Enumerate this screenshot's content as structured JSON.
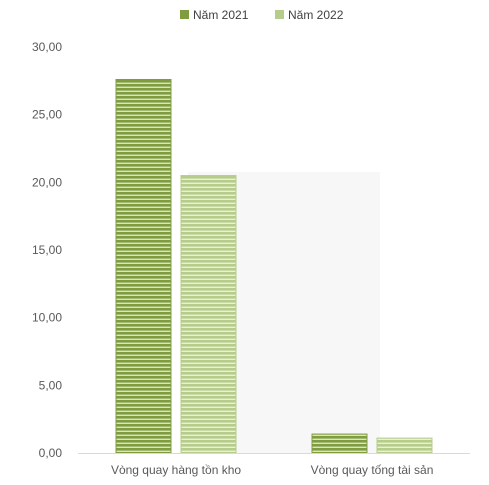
{
  "chart_data": {
    "type": "bar",
    "categories": [
      "Vòng quay hàng tồn kho",
      "Vòng quay tống tài sản"
    ],
    "series": [
      {
        "name": "Năm 2021",
        "values": [
          27.6,
          1.4
        ],
        "color": "#7f9c3f"
      },
      {
        "name": "Năm 2022",
        "values": [
          20.5,
          1.1
        ],
        "color": "#b6cc8a"
      }
    ],
    "y_ticks": [
      "0,00",
      "5,00",
      "10,00",
      "15,00",
      "20,00",
      "25,00",
      "30,00"
    ],
    "ylim": [
      0,
      30
    ],
    "legend_position": "top-center",
    "grid": false
  }
}
